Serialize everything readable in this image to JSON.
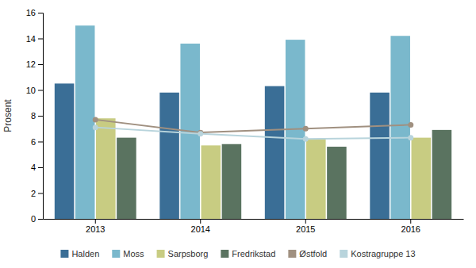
{
  "chart_data": {
    "type": "bar",
    "ylabel": "Prosent",
    "categories": [
      "2013",
      "2014",
      "2015",
      "2016"
    ],
    "series": [
      {
        "name": "Halden",
        "type": "bar",
        "color": "#3a6e96",
        "values": [
          10.5,
          9.8,
          10.3,
          9.8
        ]
      },
      {
        "name": "Moss",
        "type": "bar",
        "color": "#7ab8cc",
        "values": [
          15.0,
          13.6,
          13.9,
          14.2
        ]
      },
      {
        "name": "Sarpsborg",
        "type": "bar",
        "color": "#c8cc82",
        "values": [
          7.8,
          5.7,
          6.2,
          6.3
        ]
      },
      {
        "name": "Fredrikstad",
        "type": "bar",
        "color": "#5a7360",
        "values": [
          6.3,
          5.8,
          5.6,
          6.9
        ]
      },
      {
        "name": "Østfold",
        "type": "line",
        "marker": "circle",
        "color": "#a09080",
        "values": [
          7.7,
          6.7,
          7.0,
          7.3
        ]
      },
      {
        "name": "Kostragruppe 13",
        "type": "line",
        "marker": "circle",
        "color": "#b8d4dc",
        "values": [
          7.1,
          6.6,
          6.2,
          6.3
        ]
      }
    ],
    "ylim": [
      0,
      16
    ],
    "yticks": [
      0,
      2,
      4,
      6,
      8,
      10,
      12,
      14,
      16
    ],
    "grid": false,
    "legend": "bottom"
  }
}
